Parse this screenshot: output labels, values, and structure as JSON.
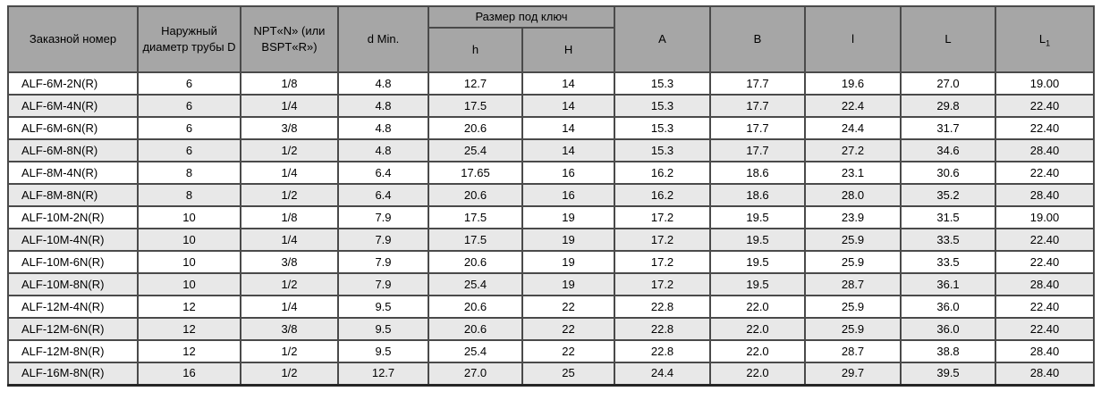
{
  "table": {
    "header": {
      "order_number": "Заказной номер",
      "outer_diameter": "Наружный диаметр трубы D",
      "thread": "NPT«N» (или BSPT«R»)",
      "d_min": "d Min.",
      "wrench_size_group": "Размер под ключ",
      "h_small": "h",
      "h_big": "H",
      "a": "A",
      "b": "B",
      "l_small": "l",
      "l_big": "L",
      "l1_base": "L",
      "l1_sub": "1"
    },
    "rows": [
      [
        "ALF-6M-2N(R)",
        "6",
        "1/8",
        "4.8",
        "12.7",
        "14",
        "15.3",
        "17.7",
        "19.6",
        "27.0",
        "19.00"
      ],
      [
        "ALF-6M-4N(R)",
        "6",
        "1/4",
        "4.8",
        "17.5",
        "14",
        "15.3",
        "17.7",
        "22.4",
        "29.8",
        "22.40"
      ],
      [
        "ALF-6M-6N(R)",
        "6",
        "3/8",
        "4.8",
        "20.6",
        "14",
        "15.3",
        "17.7",
        "24.4",
        "31.7",
        "22.40"
      ],
      [
        "ALF-6M-8N(R)",
        "6",
        "1/2",
        "4.8",
        "25.4",
        "14",
        "15.3",
        "17.7",
        "27.2",
        "34.6",
        "28.40"
      ],
      [
        "ALF-8M-4N(R)",
        "8",
        "1/4",
        "6.4",
        "17.65",
        "16",
        "16.2",
        "18.6",
        "23.1",
        "30.6",
        "22.40"
      ],
      [
        "ALF-8M-8N(R)",
        "8",
        "1/2",
        "6.4",
        "20.6",
        "16",
        "16.2",
        "18.6",
        "28.0",
        "35.2",
        "28.40"
      ],
      [
        "ALF-10M-2N(R)",
        "10",
        "1/8",
        "7.9",
        "17.5",
        "19",
        "17.2",
        "19.5",
        "23.9",
        "31.5",
        "19.00"
      ],
      [
        "ALF-10M-4N(R)",
        "10",
        "1/4",
        "7.9",
        "17.5",
        "19",
        "17.2",
        "19.5",
        "25.9",
        "33.5",
        "22.40"
      ],
      [
        "ALF-10M-6N(R)",
        "10",
        "3/8",
        "7.9",
        "20.6",
        "19",
        "17.2",
        "19.5",
        "25.9",
        "33.5",
        "22.40"
      ],
      [
        "ALF-10M-8N(R)",
        "10",
        "1/2",
        "7.9",
        "25.4",
        "19",
        "17.2",
        "19.5",
        "28.7",
        "36.1",
        "28.40"
      ],
      [
        "ALF-12M-4N(R)",
        "12",
        "1/4",
        "9.5",
        "20.6",
        "22",
        "22.8",
        "22.0",
        "25.9",
        "36.0",
        "22.40"
      ],
      [
        "ALF-12M-6N(R)",
        "12",
        "3/8",
        "9.5",
        "20.6",
        "22",
        "22.8",
        "22.0",
        "25.9",
        "36.0",
        "22.40"
      ],
      [
        "ALF-12M-8N(R)",
        "12",
        "1/2",
        "9.5",
        "25.4",
        "22",
        "22.8",
        "22.0",
        "28.7",
        "38.8",
        "28.40"
      ],
      [
        "ALF-16M-8N(R)",
        "16",
        "1/2",
        "12.7",
        "27.0",
        "25",
        "24.4",
        "22.0",
        "29.7",
        "39.5",
        "28.40"
      ]
    ]
  },
  "colors": {
    "header_bg": "#a6a6a6",
    "alt_row_bg": "#e8e8e8",
    "row_bg": "#ffffff",
    "border": "#4a4a4a",
    "outer_border": "#262626",
    "text": "#000000"
  }
}
